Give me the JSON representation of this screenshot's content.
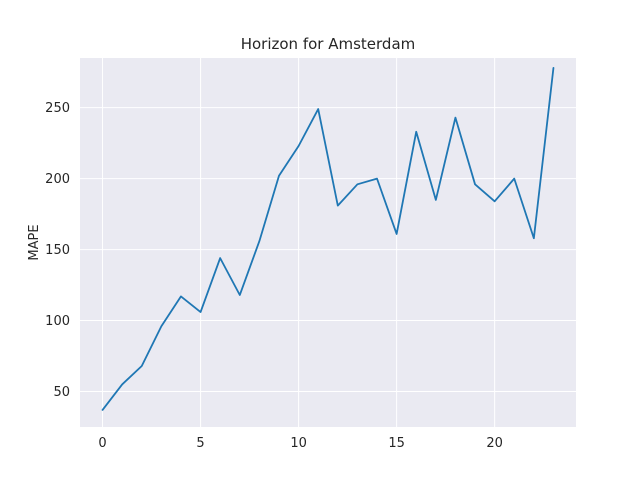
{
  "chart_data": {
    "type": "line",
    "title": "Horizon for Amsterdam",
    "xlabel": "",
    "ylabel": "MAPE",
    "xlim": [
      -1.15,
      24.15
    ],
    "ylim": [
      25,
      285
    ],
    "xticks": [
      0,
      5,
      10,
      15,
      20
    ],
    "yticks": [
      50,
      100,
      150,
      200,
      250
    ],
    "grid": true,
    "background_color": "#eaeaf2",
    "grid_color": "#ffffff",
    "series": [
      {
        "color": "#1f77b4",
        "x": [
          0,
          1,
          2,
          3,
          4,
          5,
          6,
          7,
          8,
          9,
          10,
          11,
          12,
          13,
          14,
          15,
          16,
          17,
          18,
          19,
          20,
          21,
          22,
          23
        ],
        "values": [
          37,
          55,
          68,
          96,
          117,
          106,
          144,
          118,
          156,
          202,
          223,
          249,
          181,
          196,
          200,
          161,
          233,
          185,
          243,
          196,
          184,
          200,
          158,
          278
        ]
      }
    ]
  }
}
